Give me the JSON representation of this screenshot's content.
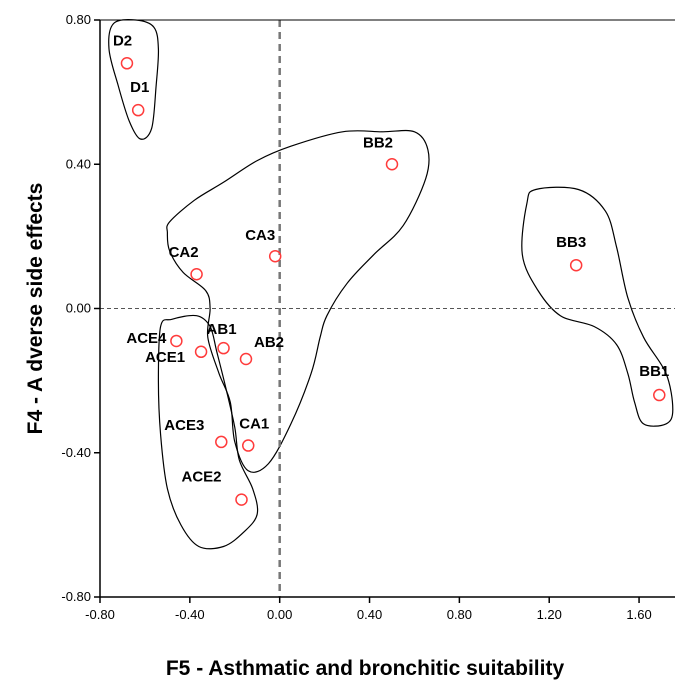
{
  "chart_data": {
    "type": "scatter",
    "xlabel": "F5 - Asthmatic and bronchitic suitability",
    "ylabel": "F4 - A dverse side effects",
    "xlim": [
      -0.8,
      1.76
    ],
    "ylim": [
      -0.8,
      0.8
    ],
    "x_ticks": [
      -0.8,
      -0.4,
      0.0,
      0.4,
      0.8,
      1.2,
      1.6
    ],
    "y_ticks": [
      -0.8,
      -0.4,
      0.0,
      0.4,
      0.8
    ],
    "x_tick_labels": [
      "-0.80",
      "-0.40",
      "0.00",
      "0.40",
      "0.80",
      "1.20",
      "1.60"
    ],
    "y_tick_labels": [
      "-0.80",
      "-0.40",
      "0.00",
      "0.40",
      "0.80"
    ],
    "grid": false,
    "reference_lines": {
      "x": 0.0,
      "y": 0.0,
      "style": "dashed"
    },
    "marker": {
      "shape": "open-circle",
      "color": "#ff3b3b"
    },
    "axis_color": "#000000",
    "points": [
      {
        "label": "D2",
        "x": -0.68,
        "y": 0.68
      },
      {
        "label": "D1",
        "x": -0.63,
        "y": 0.55
      },
      {
        "label": "BB2",
        "x": 0.5,
        "y": 0.4
      },
      {
        "label": "CA3",
        "x": -0.02,
        "y": 0.145
      },
      {
        "label": "CA2",
        "x": -0.37,
        "y": 0.095
      },
      {
        "label": "BB3",
        "x": 1.32,
        "y": 0.12
      },
      {
        "label": "ACE4",
        "x": -0.46,
        "y": -0.09
      },
      {
        "label": "AB1",
        "x": -0.25,
        "y": -0.11
      },
      {
        "label": "ACE1",
        "x": -0.35,
        "y": -0.12
      },
      {
        "label": "AB2",
        "x": -0.15,
        "y": -0.14
      },
      {
        "label": "BB1",
        "x": 1.69,
        "y": -0.24
      },
      {
        "label": "ACE3",
        "x": -0.26,
        "y": -0.37
      },
      {
        "label": "CA1",
        "x": -0.14,
        "y": -0.38
      },
      {
        "label": "ACE2",
        "x": -0.17,
        "y": -0.53
      }
    ],
    "clusters": [
      {
        "name": "cluster-d",
        "path": [
          [
            -0.76,
            0.72
          ],
          [
            -0.74,
            0.79
          ],
          [
            -0.64,
            0.8
          ],
          [
            -0.56,
            0.78
          ],
          [
            -0.54,
            0.72
          ],
          [
            -0.55,
            0.62
          ],
          [
            -0.57,
            0.5
          ],
          [
            -0.62,
            0.47
          ],
          [
            -0.67,
            0.52
          ],
          [
            -0.72,
            0.62
          ]
        ]
      },
      {
        "name": "cluster-ca",
        "path": [
          [
            -0.5,
            0.21
          ],
          [
            -0.49,
            0.24
          ],
          [
            -0.38,
            0.3
          ],
          [
            -0.25,
            0.35
          ],
          [
            -0.1,
            0.41
          ],
          [
            0.05,
            0.45
          ],
          [
            0.28,
            0.49
          ],
          [
            0.46,
            0.49
          ],
          [
            0.6,
            0.49
          ],
          [
            0.66,
            0.44
          ],
          [
            0.65,
            0.36
          ],
          [
            0.55,
            0.23
          ],
          [
            0.42,
            0.15
          ],
          [
            0.3,
            0.07
          ],
          [
            0.21,
            -0.02
          ],
          [
            0.18,
            -0.08
          ],
          [
            0.14,
            -0.18
          ],
          [
            0.05,
            -0.32
          ],
          [
            -0.05,
            -0.43
          ],
          [
            -0.14,
            -0.45
          ],
          [
            -0.2,
            -0.37
          ],
          [
            -0.22,
            -0.26
          ],
          [
            -0.27,
            -0.18
          ],
          [
            -0.32,
            -0.08
          ],
          [
            -0.31,
            0.0
          ],
          [
            -0.33,
            0.05
          ],
          [
            -0.43,
            0.1
          ],
          [
            -0.49,
            0.16
          ]
        ]
      },
      {
        "name": "cluster-ace",
        "path": [
          [
            -0.53,
            -0.05
          ],
          [
            -0.48,
            -0.03
          ],
          [
            -0.37,
            -0.02
          ],
          [
            -0.31,
            -0.05
          ],
          [
            -0.28,
            -0.12
          ],
          [
            -0.24,
            -0.22
          ],
          [
            -0.2,
            -0.33
          ],
          [
            -0.18,
            -0.42
          ],
          [
            -0.12,
            -0.5
          ],
          [
            -0.1,
            -0.57
          ],
          [
            -0.16,
            -0.62
          ],
          [
            -0.25,
            -0.66
          ],
          [
            -0.36,
            -0.66
          ],
          [
            -0.44,
            -0.6
          ],
          [
            -0.5,
            -0.5
          ],
          [
            -0.53,
            -0.35
          ],
          [
            -0.54,
            -0.2
          ]
        ]
      },
      {
        "name": "cluster-bb",
        "path": [
          [
            1.1,
            0.29
          ],
          [
            1.14,
            0.33
          ],
          [
            1.33,
            0.33
          ],
          [
            1.45,
            0.27
          ],
          [
            1.5,
            0.17
          ],
          [
            1.55,
            0.03
          ],
          [
            1.62,
            -0.08
          ],
          [
            1.72,
            -0.18
          ],
          [
            1.75,
            -0.28
          ],
          [
            1.72,
            -0.32
          ],
          [
            1.62,
            -0.32
          ],
          [
            1.58,
            -0.26
          ],
          [
            1.55,
            -0.18
          ],
          [
            1.5,
            -0.1
          ],
          [
            1.4,
            -0.05
          ],
          [
            1.25,
            -0.02
          ],
          [
            1.15,
            0.05
          ],
          [
            1.08,
            0.15
          ]
        ]
      }
    ]
  }
}
